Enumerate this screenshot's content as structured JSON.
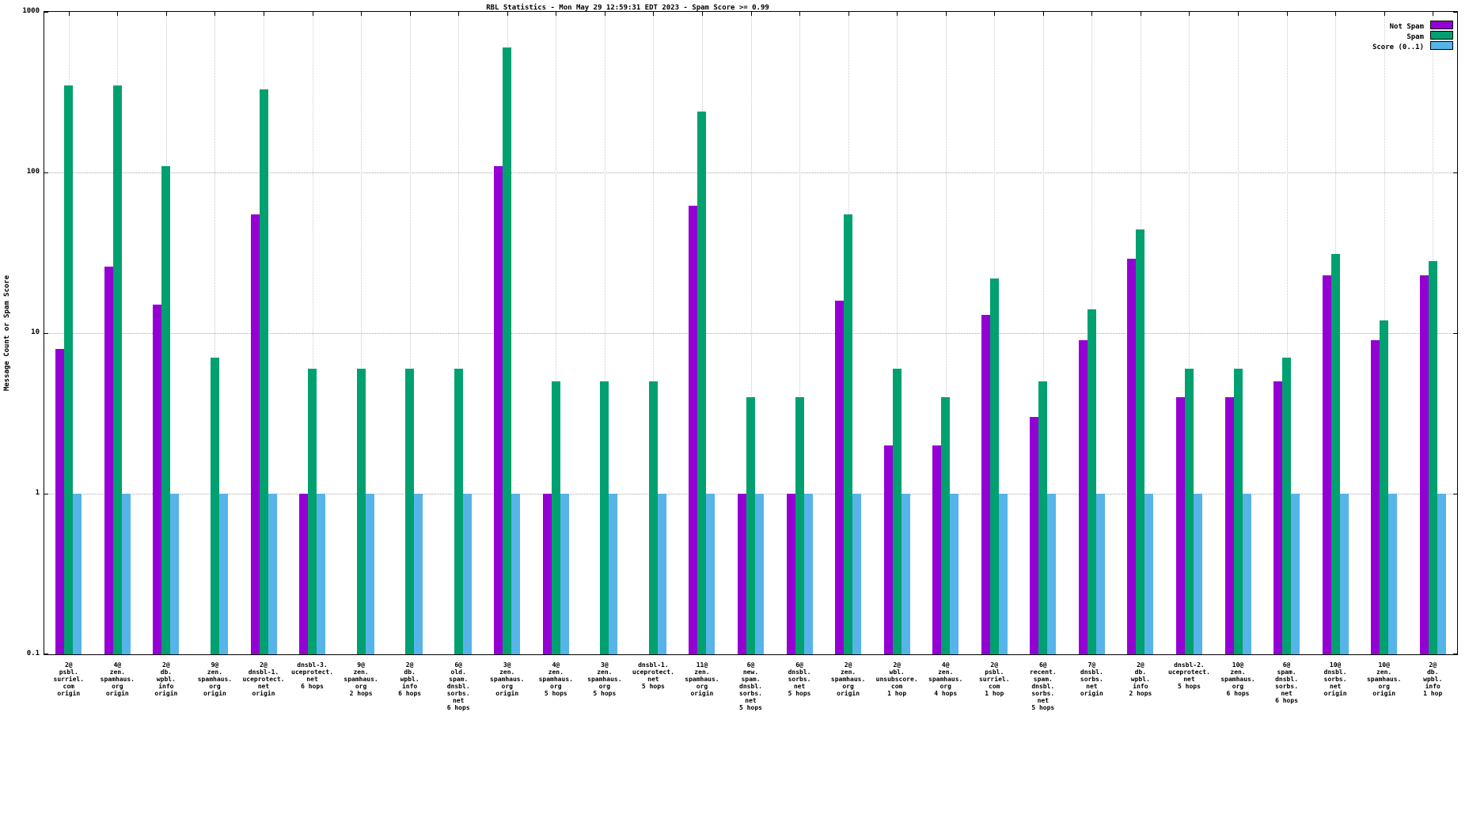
{
  "chart_data": {
    "type": "bar",
    "title": "RBL Statistics - Mon May 29 12:59:31 EDT 2023 - Spam Score >= 0.99",
    "ylabel": "Message Count or Spam Score",
    "xlabel": "",
    "y_scale": "log",
    "ylim": [
      0.1,
      1000
    ],
    "y_ticks": [
      0.1,
      1,
      10,
      100,
      1000
    ],
    "y_tick_labels": [
      "0.1",
      "1",
      "10",
      "100",
      "1000"
    ],
    "grid": true,
    "legend_position": "top-right",
    "categories": [
      [
        "2@",
        "psbl.",
        "surriel.",
        "com",
        "origin"
      ],
      [
        "4@",
        "zen.",
        "spamhaus.",
        "org",
        "origin"
      ],
      [
        "2@",
        "db.",
        "wpbl.",
        "info",
        "origin"
      ],
      [
        "9@",
        "zen.",
        "spamhaus.",
        "org",
        "origin"
      ],
      [
        "2@",
        "dnsbl-1.",
        "uceprotect.",
        "net",
        "origin"
      ],
      [
        "dnsbl-3.",
        "uceprotect.",
        "net",
        "6 hops"
      ],
      [
        "9@",
        "zen.",
        "spamhaus.",
        "org",
        "2 hops"
      ],
      [
        "2@",
        "db.",
        "wpbl.",
        "info",
        "6 hops"
      ],
      [
        "6@",
        "old.",
        "spam.",
        "dnsbl.",
        "sorbs.",
        "net",
        "6 hops"
      ],
      [
        "3@",
        "zen.",
        "spamhaus.",
        "org",
        "origin"
      ],
      [
        "4@",
        "zen.",
        "spamhaus.",
        "org",
        "5 hops"
      ],
      [
        "3@",
        "zen.",
        "spamhaus.",
        "org",
        "5 hops"
      ],
      [
        "dnsbl-1.",
        "uceprotect.",
        "net",
        "5 hops"
      ],
      [
        "11@",
        "zen.",
        "spamhaus.",
        "org",
        "origin"
      ],
      [
        "6@",
        "new.",
        "spam.",
        "dnsbl.",
        "sorbs.",
        "net",
        "5 hops"
      ],
      [
        "6@",
        "dnsbl.",
        "sorbs.",
        "net",
        "5 hops"
      ],
      [
        "2@",
        "zen.",
        "spamhaus.",
        "org",
        "origin"
      ],
      [
        "2@",
        "wbl.",
        "unsubscore.",
        "com",
        "1 hop"
      ],
      [
        "4@",
        "zen.",
        "spamhaus.",
        "org",
        "4 hops"
      ],
      [
        "2@",
        "psbl.",
        "surriel.",
        "com",
        "1 hop"
      ],
      [
        "6@",
        "recent.",
        "spam.",
        "dnsbl.",
        "sorbs.",
        "net",
        "5 hops"
      ],
      [
        "7@",
        "dnsbl.",
        "sorbs.",
        "net",
        "origin"
      ],
      [
        "2@",
        "db.",
        "wpbl.",
        "info",
        "2 hops"
      ],
      [
        "dnsbl-2.",
        "uceprotect.",
        "net",
        "5 hops"
      ],
      [
        "10@",
        "zen.",
        "spamhaus.",
        "org",
        "6 hops"
      ],
      [
        "6@",
        "spam.",
        "dnsbl.",
        "sorbs.",
        "net",
        "6 hops"
      ],
      [
        "10@",
        "dnsbl.",
        "sorbs.",
        "net",
        "origin"
      ],
      [
        "10@",
        "zen.",
        "spamhaus.",
        "org",
        "origin"
      ],
      [
        "2@",
        "db.",
        "wpbl.",
        "info",
        "1 hop"
      ]
    ],
    "series": [
      {
        "name": "Not Spam",
        "color": "#9400d3",
        "values": [
          8,
          26,
          15,
          0,
          55,
          1,
          0,
          0,
          0,
          110,
          1,
          0,
          0,
          62,
          1,
          1,
          16,
          2,
          2,
          13,
          3,
          9,
          29,
          4,
          4,
          5,
          23,
          9,
          23
        ]
      },
      {
        "name": "Spam",
        "color": "#00a070",
        "values": [
          350,
          350,
          110,
          7,
          330,
          6,
          6,
          6,
          6,
          600,
          5,
          5,
          5,
          240,
          4,
          4,
          55,
          6,
          4,
          22,
          5,
          14,
          44,
          6,
          6,
          7,
          31,
          12,
          28
        ]
      },
      {
        "name": "Score (0..1)",
        "color": "#56b4e9",
        "values": [
          1,
          1,
          1,
          1,
          1,
          1,
          1,
          1,
          1,
          1,
          1,
          1,
          1,
          1,
          1,
          1,
          1,
          1,
          1,
          1,
          1,
          1,
          1,
          1,
          1,
          1,
          1,
          1,
          1
        ]
      }
    ]
  }
}
